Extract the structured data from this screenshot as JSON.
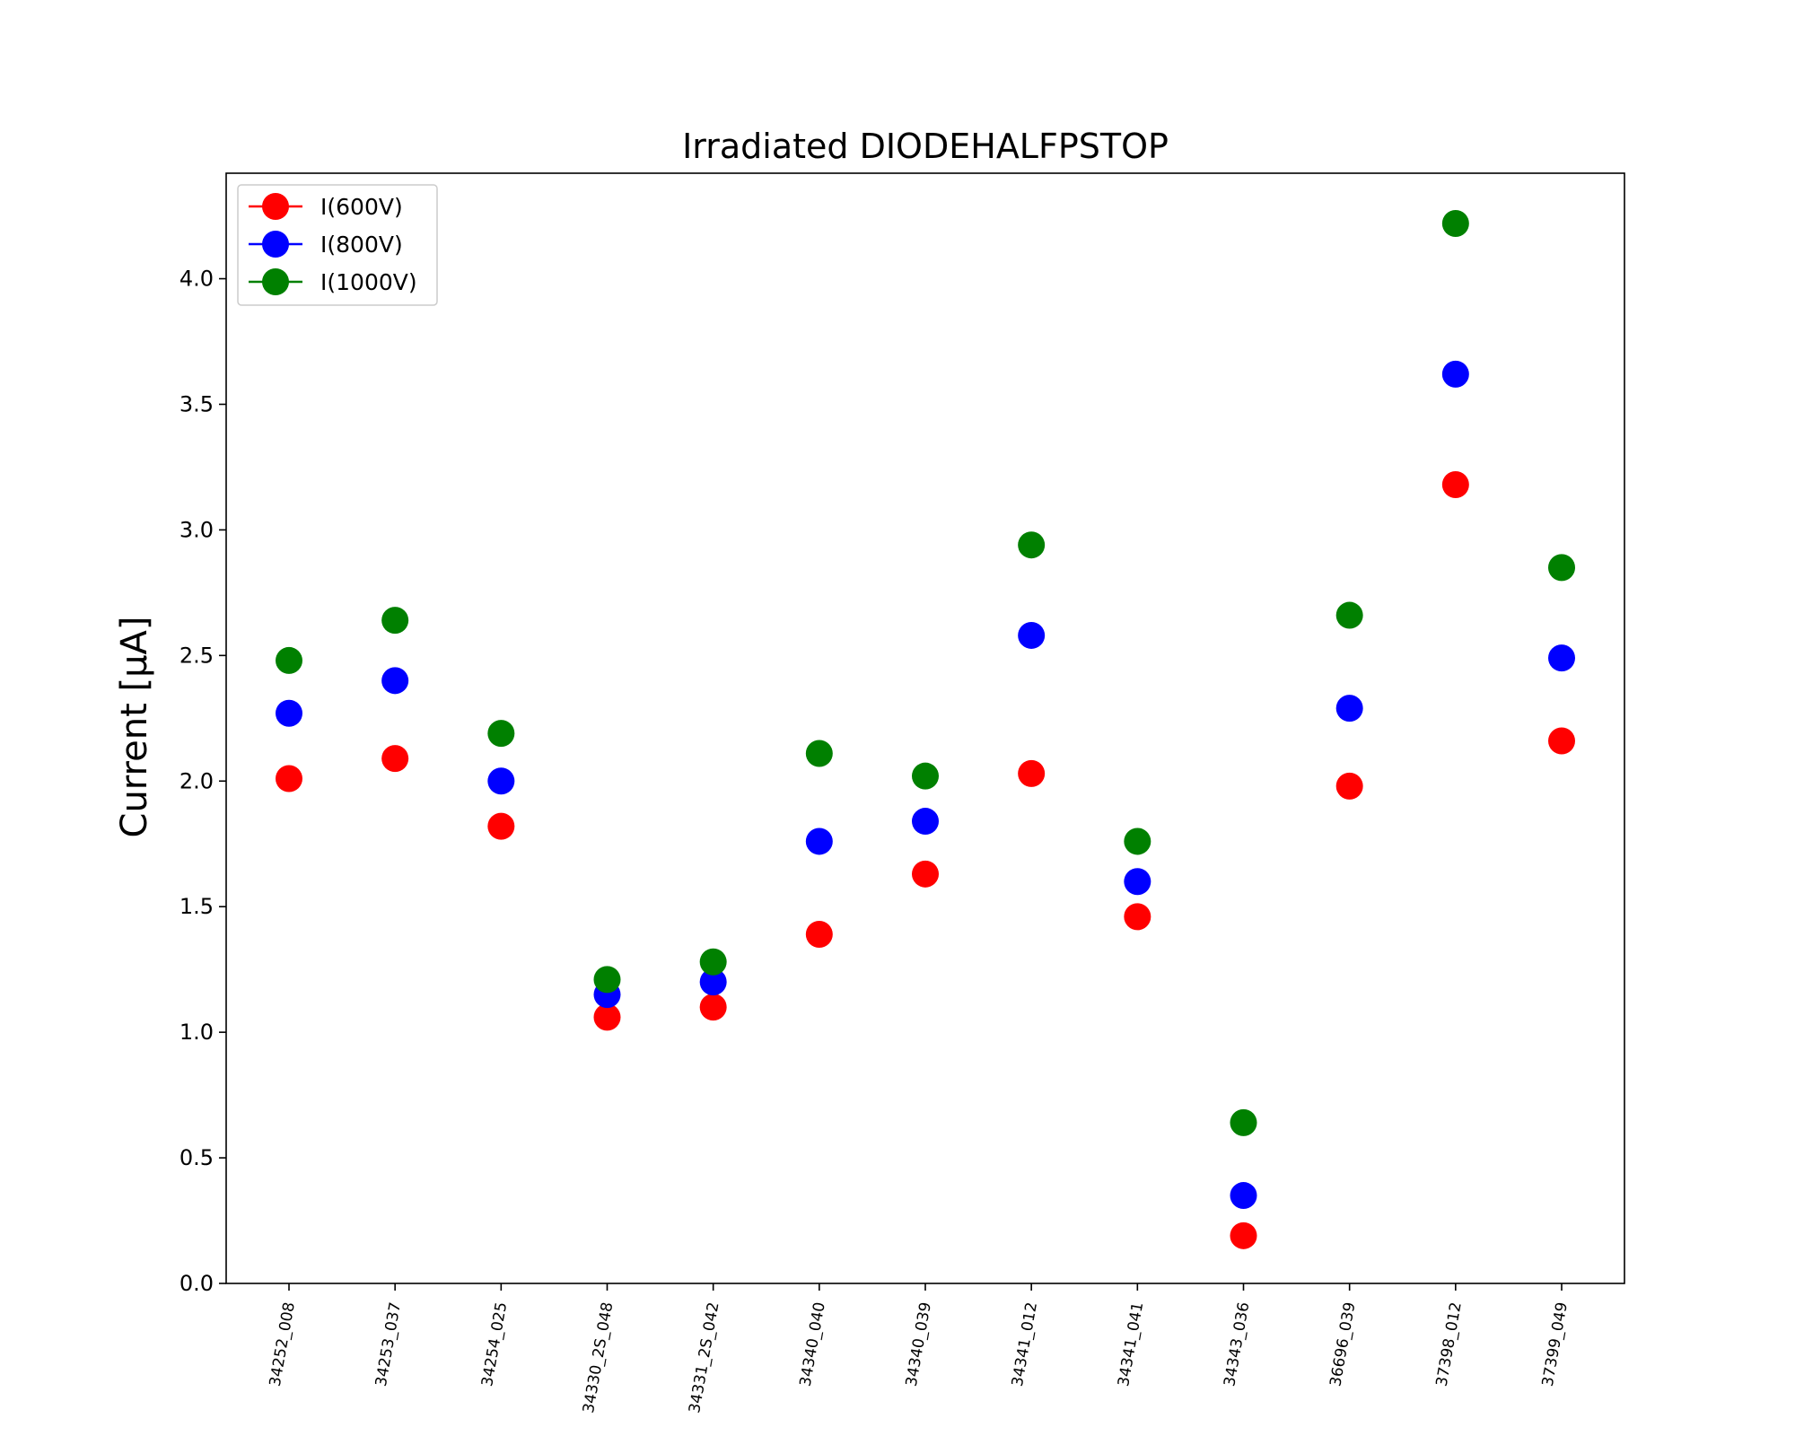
{
  "chart_data": {
    "type": "scatter",
    "title": "Irradiated DIODEHALFPSTOP",
    "xlabel": "",
    "ylabel": "Current [μA]",
    "ylim": [
      0,
      4.42
    ],
    "yticks": [
      0.0,
      0.5,
      1.0,
      1.5,
      2.0,
      2.5,
      3.0,
      3.5,
      4.0
    ],
    "grid": false,
    "legend_position": "top-left",
    "categories": [
      "34252_008",
      "34253_037",
      "34254_025",
      "34330_2S_048",
      "34331_2S_042",
      "34340_040",
      "34340_039",
      "34341_012",
      "34341_041",
      "34343_036",
      "36696_039",
      "37398_012",
      "37399_049"
    ],
    "series": [
      {
        "name": "I(600V)",
        "color": "#ff0000",
        "values": [
          2.01,
          2.09,
          1.82,
          1.06,
          1.1,
          1.39,
          1.63,
          2.03,
          1.46,
          0.19,
          1.98,
          3.18,
          2.16
        ]
      },
      {
        "name": "I(800V)",
        "color": "#0000ff",
        "values": [
          2.27,
          2.4,
          2.0,
          1.15,
          1.2,
          1.76,
          1.84,
          2.58,
          1.6,
          0.35,
          2.29,
          3.62,
          2.49
        ]
      },
      {
        "name": "I(1000V)",
        "color": "#008000",
        "values": [
          2.48,
          2.64,
          2.19,
          1.21,
          1.28,
          2.11,
          2.02,
          2.94,
          1.76,
          0.64,
          2.66,
          4.22,
          2.85
        ]
      }
    ]
  }
}
